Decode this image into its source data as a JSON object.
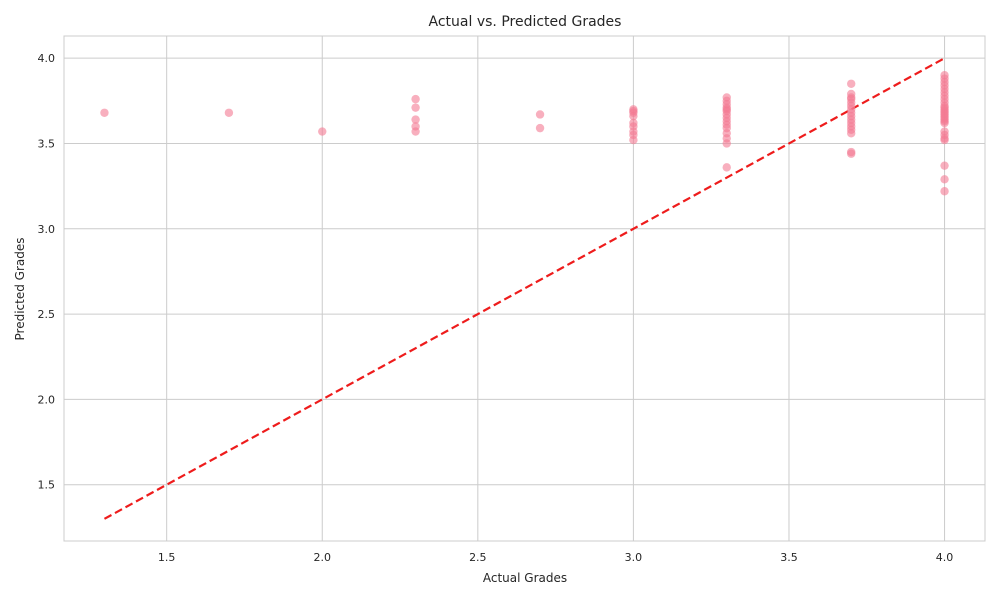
{
  "chart_data": {
    "type": "scatter",
    "title": "Actual vs. Predicted Grades",
    "xlabel": "Actual Grades",
    "ylabel": "Predicted Grades",
    "xlim": [
      1.17,
      4.13
    ],
    "ylim": [
      1.17,
      4.13
    ],
    "x_ticks": [
      "1.5",
      "2.0",
      "2.5",
      "3.0",
      "3.5",
      "4.0"
    ],
    "y_ticks": [
      "1.5",
      "2.0",
      "2.5",
      "3.0",
      "3.5",
      "4.0"
    ],
    "grid": true,
    "colors": {
      "points": "#f47a93",
      "reference_line": "#ee1c1c",
      "grid": "#cccccc"
    },
    "reference_line": {
      "style": "dashed",
      "from": [
        1.3,
        1.3
      ],
      "to": [
        4.0,
        4.0
      ]
    },
    "series": [
      {
        "points": [
          [
            1.3,
            3.68
          ],
          [
            1.7,
            3.68
          ],
          [
            2.0,
            3.57
          ],
          [
            2.3,
            3.76
          ],
          [
            2.3,
            3.71
          ],
          [
            2.3,
            3.64
          ],
          [
            2.3,
            3.6
          ],
          [
            2.3,
            3.57
          ],
          [
            2.7,
            3.67
          ],
          [
            2.7,
            3.59
          ],
          [
            3.0,
            3.7
          ],
          [
            3.0,
            3.69
          ],
          [
            3.0,
            3.68
          ],
          [
            3.0,
            3.66
          ],
          [
            3.0,
            3.62
          ],
          [
            3.0,
            3.6
          ],
          [
            3.0,
            3.57
          ],
          [
            3.0,
            3.55
          ],
          [
            3.0,
            3.52
          ],
          [
            3.3,
            3.77
          ],
          [
            3.3,
            3.75
          ],
          [
            3.3,
            3.73
          ],
          [
            3.3,
            3.71
          ],
          [
            3.3,
            3.7
          ],
          [
            3.3,
            3.69
          ],
          [
            3.3,
            3.67
          ],
          [
            3.3,
            3.65
          ],
          [
            3.3,
            3.63
          ],
          [
            3.3,
            3.61
          ],
          [
            3.3,
            3.59
          ],
          [
            3.3,
            3.56
          ],
          [
            3.3,
            3.53
          ],
          [
            3.3,
            3.5
          ],
          [
            3.3,
            3.36
          ],
          [
            3.7,
            3.85
          ],
          [
            3.7,
            3.79
          ],
          [
            3.7,
            3.77
          ],
          [
            3.7,
            3.76
          ],
          [
            3.7,
            3.74
          ],
          [
            3.7,
            3.72
          ],
          [
            3.7,
            3.7
          ],
          [
            3.7,
            3.68
          ],
          [
            3.7,
            3.66
          ],
          [
            3.7,
            3.64
          ],
          [
            3.7,
            3.62
          ],
          [
            3.7,
            3.6
          ],
          [
            3.7,
            3.58
          ],
          [
            3.7,
            3.56
          ],
          [
            3.7,
            3.45
          ],
          [
            3.7,
            3.44
          ],
          [
            4.0,
            3.9
          ],
          [
            4.0,
            3.88
          ],
          [
            4.0,
            3.86
          ],
          [
            4.0,
            3.84
          ],
          [
            4.0,
            3.82
          ],
          [
            4.0,
            3.8
          ],
          [
            4.0,
            3.78
          ],
          [
            4.0,
            3.76
          ],
          [
            4.0,
            3.74
          ],
          [
            4.0,
            3.72
          ],
          [
            4.0,
            3.71
          ],
          [
            4.0,
            3.7
          ],
          [
            4.0,
            3.69
          ],
          [
            4.0,
            3.68
          ],
          [
            4.0,
            3.67
          ],
          [
            4.0,
            3.66
          ],
          [
            4.0,
            3.65
          ],
          [
            4.0,
            3.64
          ],
          [
            4.0,
            3.63
          ],
          [
            4.0,
            3.62
          ],
          [
            4.0,
            3.57
          ],
          [
            4.0,
            3.55
          ],
          [
            4.0,
            3.53
          ],
          [
            4.0,
            3.52
          ],
          [
            4.0,
            3.37
          ],
          [
            4.0,
            3.29
          ],
          [
            4.0,
            3.22
          ]
        ]
      }
    ]
  }
}
